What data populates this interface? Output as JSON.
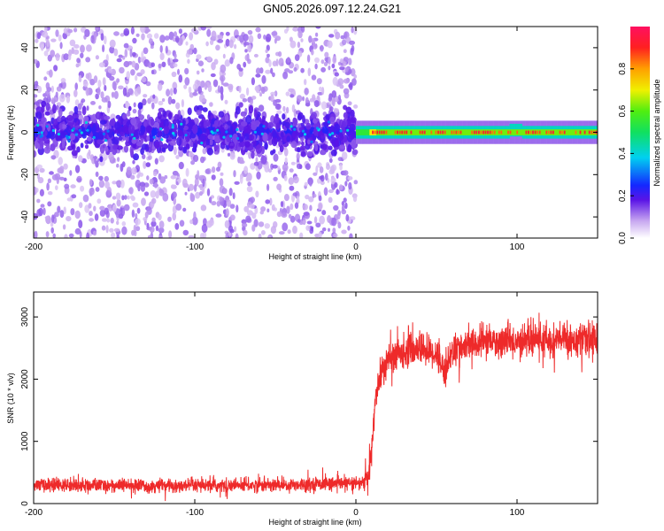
{
  "title": "GN05.2026.097.12.24.G21",
  "colors": {
    "snr_line": "#ee2a2a",
    "frame": "#000000",
    "background": "#ffffff"
  },
  "chart_data": [
    {
      "type": "heatmap",
      "title": "GN05.2026.097.12.24.G21",
      "xlabel": "Height of straight line (km)",
      "ylabel": "Frequency (Hz)",
      "xlim": [
        -200,
        150
      ],
      "ylim": [
        -50,
        50
      ],
      "xticks": [
        -200,
        -100,
        0,
        100
      ],
      "yticks": [
        -40,
        -20,
        0,
        20,
        40
      ],
      "xtick_labels": [
        "-200",
        "-100",
        "0",
        "100"
      ],
      "ytick_labels": [
        "-40",
        "-20",
        "0",
        "20",
        "40"
      ],
      "colorbar": {
        "label": "Normalized spectral amplitude",
        "range": [
          0,
          1
        ],
        "ticks": [
          0.0,
          0.2,
          0.4,
          0.6,
          0.8
        ],
        "tick_labels": [
          "0.0",
          "0.2",
          "0.4",
          "0.6",
          "0.8"
        ]
      },
      "regions": [
        {
          "x_range": [
            -200,
            0
          ],
          "description_level": "scattered low amplitude (0.05-0.2) spread over -50..50 Hz, dense core 0.15-0.3 within -10..10 Hz"
        },
        {
          "x_range": [
            0,
            150
          ],
          "center_freq_hz": 0,
          "half_width_hz": 3,
          "peak_amplitude": 0.95
        }
      ]
    },
    {
      "type": "line",
      "xlabel": "Height of straight line (km)",
      "ylabel": "SNR (10 * v/v)",
      "xlim": [
        -200,
        150
      ],
      "ylim": [
        0,
        3400
      ],
      "xticks": [
        -200,
        -100,
        0,
        100
      ],
      "yticks": [
        0,
        1000,
        2000,
        3000
      ],
      "xtick_labels": [
        "-200",
        "-100",
        "0",
        "100"
      ],
      "ytick_labels": [
        "0",
        "1000",
        "2000",
        "3000"
      ],
      "x": [
        -200,
        -150,
        -100,
        -50,
        -20,
        0,
        5,
        8,
        10,
        12,
        15,
        20,
        30,
        40,
        50,
        55,
        60,
        70,
        80,
        90,
        100,
        110,
        120,
        130,
        140,
        150
      ],
      "y": [
        300,
        290,
        280,
        300,
        320,
        320,
        340,
        420,
        900,
        1700,
        2050,
        2300,
        2450,
        2500,
        2400,
        2150,
        2450,
        2550,
        2600,
        2600,
        2600,
        2650,
        2600,
        2650,
        2600,
        2650
      ]
    }
  ]
}
